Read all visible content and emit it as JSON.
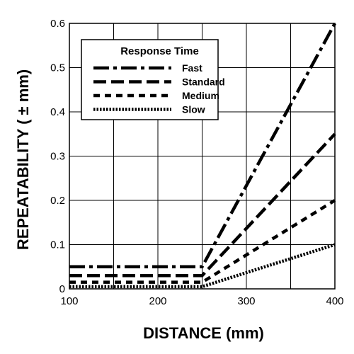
{
  "chart_data": {
    "type": "line",
    "title": "",
    "xlabel": "DISTANCE (mm)",
    "ylabel": "REPEATABILITY ( ± mm)",
    "xlim": [
      100,
      400
    ],
    "ylim": [
      0,
      0.6
    ],
    "x_ticks": [
      100,
      200,
      300,
      400
    ],
    "x_tick_labels": [
      "100",
      "200",
      "300",
      "400"
    ],
    "y_ticks": [
      0,
      0.1,
      0.2,
      0.3,
      0.4,
      0.5,
      0.6
    ],
    "y_tick_labels": [
      "0",
      "0.1",
      "0.2",
      "0.3",
      "0.4",
      "0.5",
      "0.6"
    ],
    "grid": true,
    "legend": {
      "title": "Response Time",
      "placement": "top-left"
    },
    "series": [
      {
        "name": "Fast",
        "style": "dash-dot",
        "x": [
          100,
          250,
          400
        ],
        "y": [
          0.05,
          0.05,
          0.6
        ]
      },
      {
        "name": "Standard",
        "style": "long-dash",
        "x": [
          100,
          250,
          400
        ],
        "y": [
          0.03,
          0.03,
          0.35
        ]
      },
      {
        "name": "Medium",
        "style": "short-dash",
        "x": [
          100,
          250,
          400
        ],
        "y": [
          0.015,
          0.015,
          0.2
        ]
      },
      {
        "name": "Slow",
        "style": "dotted",
        "x": [
          100,
          250,
          400
        ],
        "y": [
          0.005,
          0.005,
          0.1
        ]
      }
    ]
  }
}
